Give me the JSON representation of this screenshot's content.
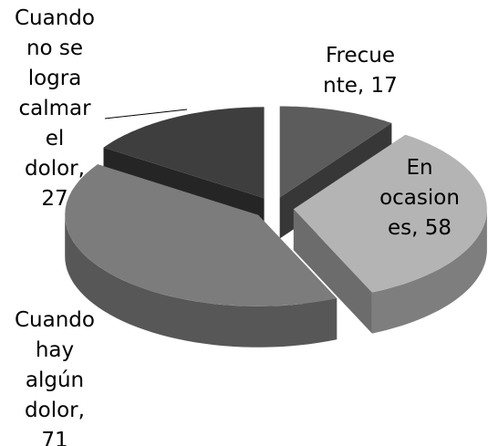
{
  "chart_data": {
    "type": "pie",
    "values": [
      17,
      58,
      71,
      27
    ],
    "value_labels": [
      "Frecue\nnte, 17",
      "En\nocasion\nes, 58",
      "Cuando\nhay\nalgún\ndolor,\n71",
      "Cuando\nno se\nlogra\ncalmar\nel\ndolor,\n27"
    ],
    "colors": [
      "#5c5c5c",
      "#b4b4b4",
      "#7c7c7c",
      "#3e3e3e"
    ]
  }
}
